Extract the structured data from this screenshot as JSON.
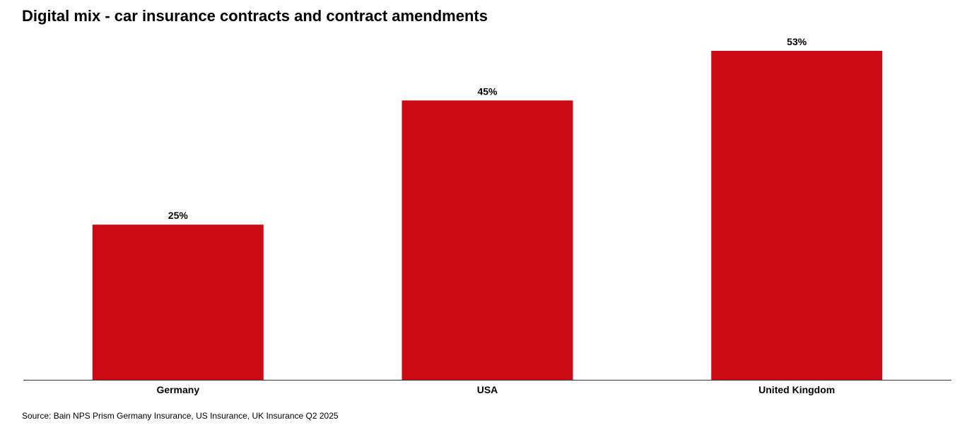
{
  "chart_data": {
    "type": "bar",
    "title": "Digital mix - car insurance contracts and contract amendments",
    "categories": [
      "Germany",
      "USA",
      "United Kingdom"
    ],
    "values": [
      25,
      45,
      53
    ],
    "data_labels": [
      "25%",
      "45%",
      "53%"
    ],
    "xlabel": "",
    "ylabel": "",
    "ylim": [
      0,
      53
    ],
    "grid": false,
    "legend": "none",
    "bar_color": "#CC0A14",
    "source": "Source: Bain NPS Prism Germany Insurance, US Insurance, UK Insurance Q2 2025"
  }
}
